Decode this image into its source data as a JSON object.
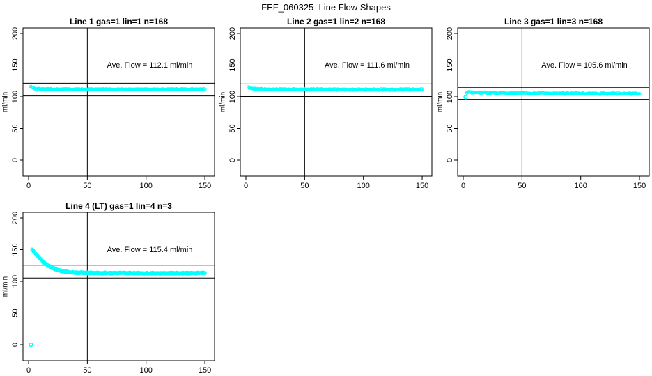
{
  "page_title": "FEF_060325  Line Flow Shapes",
  "colors": {
    "background": "#ffffff",
    "axis": "#000000",
    "points": "#00ffff",
    "text": "#000000"
  },
  "chart_data": [
    {
      "type": "scatter",
      "title": "Line 1 gas=1 lin=1 n=168",
      "ylabel": "ml/min",
      "xticks": [
        0,
        50,
        100,
        150
      ],
      "yticks": [
        0,
        50,
        100,
        150,
        200
      ],
      "xlim": [
        -5,
        158
      ],
      "ylim": [
        -25,
        209
      ],
      "grid": false,
      "vline_x": 50,
      "hlines": [
        121.5,
        101.5
      ],
      "annotation": "Ave. Flow =  112.1  ml/min",
      "ave_flow_ml_min": 112.1,
      "n": 168,
      "series": [
        {
          "name": "flow",
          "marker": "open-circle",
          "color": "#00ffff",
          "runs": 1,
          "n_points": 168,
          "x_range": [
            2,
            150
          ],
          "noise": 0.7,
          "anchors": [
            [
              2,
              116.5
            ],
            [
              3,
              115.2
            ],
            [
              4,
              114
            ],
            [
              6,
              113
            ],
            [
              9,
              112.4
            ],
            [
              15,
              112.2
            ],
            [
              30,
              112.1
            ],
            [
              60,
              111.9
            ],
            [
              90,
              111.8
            ],
            [
              120,
              111.9
            ],
            [
              150,
              112
            ]
          ]
        }
      ],
      "outlier_points": []
    },
    {
      "type": "scatter",
      "title": "Line 2 gas=1 lin=2 n=168",
      "ylabel": "ml/min",
      "xticks": [
        0,
        50,
        100,
        150
      ],
      "yticks": [
        0,
        50,
        100,
        150,
        200
      ],
      "xlim": [
        -5,
        158
      ],
      "ylim": [
        -25,
        209
      ],
      "grid": false,
      "vline_x": 50,
      "hlines": [
        120.5,
        100.5
      ],
      "annotation": "Ave. Flow =  111.6  ml/min",
      "ave_flow_ml_min": 111.6,
      "n": 168,
      "series": [
        {
          "name": "flow",
          "marker": "open-circle",
          "color": "#00ffff",
          "runs": 1,
          "n_points": 168,
          "x_range": [
            2,
            150
          ],
          "noise": 0.9,
          "anchors": [
            [
              2,
              116
            ],
            [
              3,
              114.5
            ],
            [
              5,
              113
            ],
            [
              8,
              112.4
            ],
            [
              15,
              112
            ],
            [
              40,
              111.8
            ],
            [
              80,
              111.5
            ],
            [
              120,
              111.5
            ],
            [
              150,
              111.6
            ]
          ]
        }
      ],
      "outlier_points": []
    },
    {
      "type": "scatter",
      "title": "Line 3 gas=1 lin=3 n=168",
      "ylabel": "ml/min",
      "xticks": [
        0,
        50,
        100,
        150
      ],
      "yticks": [
        0,
        50,
        100,
        150,
        200
      ],
      "xlim": [
        -5,
        158
      ],
      "ylim": [
        -25,
        209
      ],
      "grid": false,
      "vline_x": 50,
      "hlines": [
        114.5,
        96
      ],
      "annotation": "Ave. Flow =  105.6  ml/min",
      "ave_flow_ml_min": 105.6,
      "n": 168,
      "series": [
        {
          "name": "flow",
          "marker": "open-circle",
          "color": "#00ffff",
          "runs": 1,
          "n_points": 168,
          "x_range": [
            3,
            150
          ],
          "noise": 1.0,
          "anchors": [
            [
              3,
              106.5
            ],
            [
              5,
              107.3
            ],
            [
              8,
              107
            ],
            [
              15,
              106.5
            ],
            [
              40,
              106
            ],
            [
              80,
              105.4
            ],
            [
              120,
              105.1
            ],
            [
              150,
              105.4
            ]
          ]
        }
      ],
      "outlier_points": [
        [
          2,
          99.5
        ]
      ]
    },
    {
      "type": "scatter",
      "title": "Line 4 (LT) gas=1 lin=4 n=3",
      "ylabel": "ml/min",
      "xticks": [
        0,
        50,
        100,
        150
      ],
      "yticks": [
        0,
        50,
        100,
        150,
        200
      ],
      "xlim": [
        -5,
        158
      ],
      "ylim": [
        -25,
        209
      ],
      "grid": false,
      "vline_x": 50,
      "hlines": [
        125.5,
        105.2
      ],
      "annotation": "Ave. Flow =  115.4  ml/min",
      "ave_flow_ml_min": 115.4,
      "n": 3,
      "series": [
        {
          "name": "flow",
          "marker": "open-circle",
          "color": "#00ffff",
          "runs": 3,
          "n_points": 150,
          "x_range": [
            3,
            150
          ],
          "noise": 0.7,
          "anchors": [
            [
              3,
              150
            ],
            [
              5,
              146
            ],
            [
              7,
              141.5
            ],
            [
              9,
              137.5
            ],
            [
              12,
              131.5
            ],
            [
              15,
              127
            ],
            [
              18,
              123.5
            ],
            [
              22,
              119.8
            ],
            [
              26,
              117.2
            ],
            [
              30,
              115.6
            ],
            [
              35,
              114.4
            ],
            [
              40,
              113.7
            ],
            [
              50,
              113.2
            ],
            [
              70,
              113
            ],
            [
              100,
              112.8
            ],
            [
              125,
              112.8
            ],
            [
              150,
              113.1
            ]
          ]
        }
      ],
      "outlier_points": [
        [
          2,
          0
        ]
      ]
    }
  ]
}
